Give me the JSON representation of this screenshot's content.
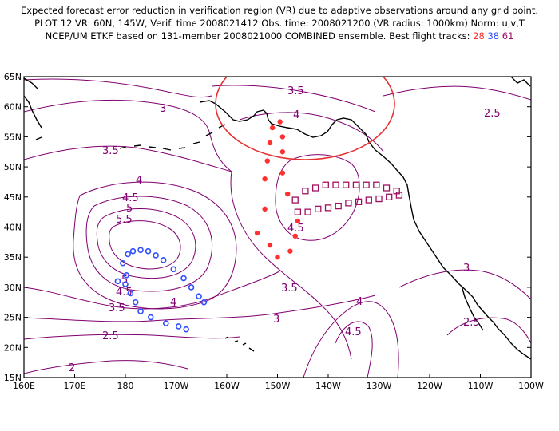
{
  "header": {
    "line1": "Expected forecast error reduction in verification region (VR) due to adaptive observations around any grid point.",
    "line2": "PLOT 12 VR: 60N, 145W, Verif. time 2008021412 Obs. time: 2008021200 (VR radius: 1000km) Norm: u,v,T",
    "line3_prefix": "NCEP/UM ETKF based on 131-member 2008021000 COMBINED ensemble.  Best flight tracks:",
    "track_a": "28",
    "track_b": "38",
    "track_c": "61"
  },
  "axes": {
    "x_ticks": [
      "160E",
      "170E",
      "180",
      "170W",
      "160W",
      "150W",
      "140W",
      "130W",
      "120W",
      "110W",
      "100W"
    ],
    "y_ticks": [
      "15N",
      "20N",
      "25N",
      "30N",
      "35N",
      "40N",
      "45N",
      "50N",
      "55N",
      "60N",
      "65N"
    ]
  },
  "contour_labels": [
    "3.5",
    "3",
    "2.5",
    "3.5",
    "4",
    "4.5",
    "5",
    "5.5",
    "5",
    "4.5",
    "4",
    "3.5",
    "2.5",
    "2",
    "3",
    "4",
    "3",
    "2.5",
    "4.5",
    "4",
    "3.5",
    "4.5"
  ],
  "colors": {
    "contour": "#800070",
    "coast": "#000000",
    "vr_circle": "#e83030",
    "track_28": "#ff3030",
    "track_38": "#3050ff",
    "track_61": "#a01060"
  },
  "map_data": {
    "verification_region": {
      "lat": 60,
      "lon": -145,
      "radius_km": 1000
    },
    "track_28_points": [
      [
        -149.5,
        57.5
      ],
      [
        -151,
        56.5
      ],
      [
        -149,
        55
      ],
      [
        -151.5,
        54
      ],
      [
        -149,
        52.5
      ],
      [
        -152,
        51
      ],
      [
        -149,
        49
      ],
      [
        -152.5,
        48
      ],
      [
        -148,
        45.5
      ],
      [
        -152.5,
        43
      ],
      [
        -146,
        41
      ],
      [
        -154,
        39
      ],
      [
        -146.5,
        38.5
      ],
      [
        -151.5,
        37
      ],
      [
        -147.5,
        36
      ],
      [
        -150,
        35
      ]
    ],
    "track_38_points": [
      [
        -178.5,
        36
      ],
      [
        -177,
        36.2
      ],
      [
        -175.5,
        36
      ],
      [
        -174,
        35.3
      ],
      [
        -172.5,
        34.5
      ],
      [
        -170.5,
        33
      ],
      [
        -168.5,
        31.5
      ],
      [
        -167,
        30
      ],
      [
        -165.5,
        28.5
      ],
      [
        -164.5,
        27.5
      ],
      [
        -179.5,
        35.5
      ],
      [
        -180.5,
        34
      ],
      [
        -179.8,
        32
      ],
      [
        -181.5,
        31
      ],
      [
        -180,
        30.5
      ],
      [
        -179,
        29
      ],
      [
        -178,
        27.5
      ],
      [
        -177,
        26
      ],
      [
        -175,
        25
      ],
      [
        -172,
        24
      ],
      [
        -169.5,
        23.5
      ],
      [
        -168,
        23
      ]
    ],
    "track_61_points": [
      [
        -146.5,
        44.5
      ],
      [
        -144.5,
        46
      ],
      [
        -142.5,
        46.5
      ],
      [
        -140.5,
        47
      ],
      [
        -138.5,
        47
      ],
      [
        -136.5,
        47
      ],
      [
        -134.5,
        47
      ],
      [
        -132.5,
        47
      ],
      [
        -130.5,
        47
      ],
      [
        -128.5,
        46.5
      ],
      [
        -126.5,
        46
      ],
      [
        -146,
        42.5
      ],
      [
        -144,
        42.5
      ],
      [
        -142,
        43
      ],
      [
        -140,
        43.2
      ],
      [
        -138,
        43.5
      ],
      [
        -136,
        44
      ],
      [
        -134,
        44.2
      ],
      [
        -132,
        44.5
      ],
      [
        -130,
        44.7
      ],
      [
        -128,
        45
      ],
      [
        -126,
        45.3
      ]
    ]
  }
}
